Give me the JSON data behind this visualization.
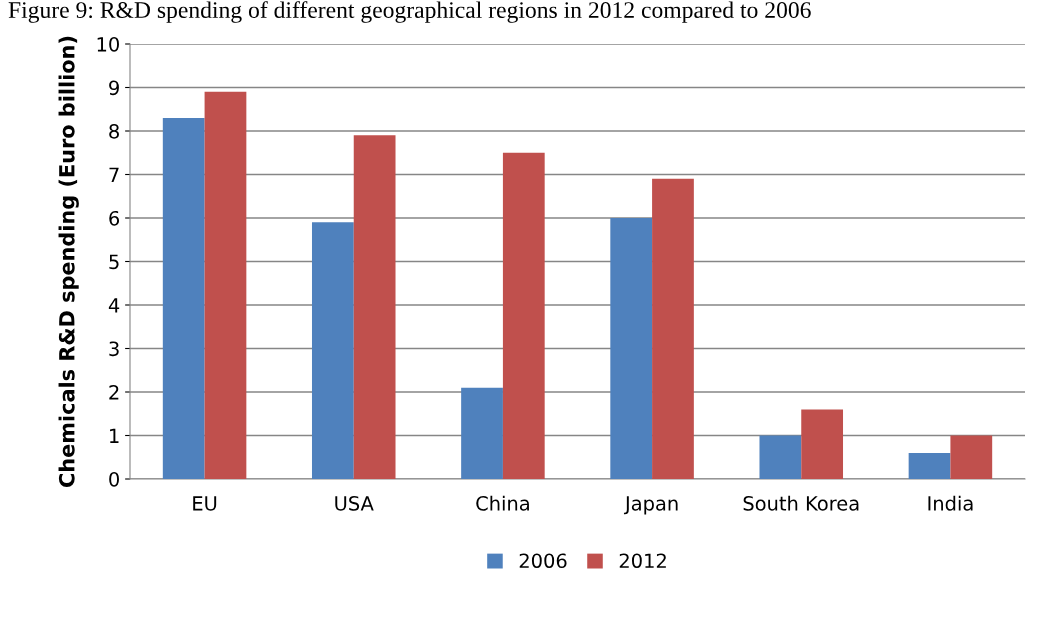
{
  "chart_data": {
    "type": "bar",
    "title": "Figure 9: R&D spending of different geographical regions in 2012 compared to 2006",
    "ylabel": "Chemicals R&D spending (Euro billion)",
    "categories": [
      "EU",
      "USA",
      "China",
      "Japan",
      "South Korea",
      "India"
    ],
    "series": [
      {
        "name": "2006",
        "color": "#4f81bd",
        "values": [
          8.3,
          5.9,
          2.1,
          6.0,
          1.0,
          0.6
        ]
      },
      {
        "name": "2012",
        "color": "#c0504d",
        "values": [
          8.9,
          7.9,
          7.5,
          6.9,
          1.6,
          1.0
        ]
      }
    ],
    "ylim": [
      0,
      10
    ],
    "yticks": [
      0,
      1,
      2,
      3,
      4,
      5,
      6,
      7,
      8,
      9,
      10
    ],
    "grid": "y",
    "legend": "bottom"
  }
}
